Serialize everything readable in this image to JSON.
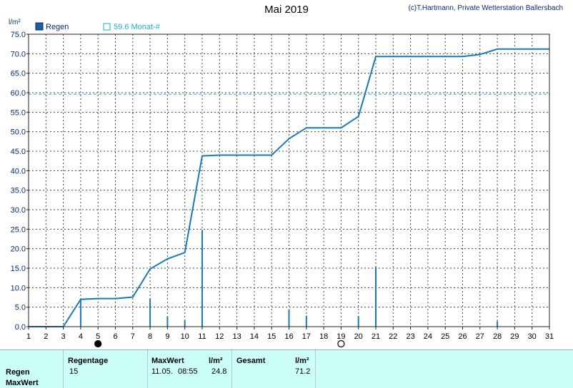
{
  "chart_data": {
    "type": "bar",
    "title": "Mai 2019",
    "credit": "(c)T.Hartmann, Private Wetterstation Ballersbach",
    "ylabel": "l/m²",
    "xlim": [
      1,
      31
    ],
    "ylim": [
      0,
      75
    ],
    "y_ticks": [
      "0.0",
      "5.0",
      "10.0",
      "15.0",
      "20.0",
      "25.0",
      "30.0",
      "35.0",
      "40.0",
      "45.0",
      "50.0",
      "55.0",
      "60.0",
      "65.0",
      "70.0",
      "75.0"
    ],
    "x_ticks": [
      "1",
      "2",
      "3",
      "4",
      "5",
      "6",
      "7",
      "8",
      "9",
      "10",
      "11",
      "12",
      "13",
      "14",
      "15",
      "16",
      "17",
      "18",
      "19",
      "20",
      "21",
      "22",
      "23",
      "24",
      "25",
      "26",
      "27",
      "28",
      "29",
      "30",
      "31"
    ],
    "grid": true,
    "legend": [
      {
        "name": "Regen",
        "symbol": "filled-square",
        "color": "#1a5fa0"
      },
      {
        "name": "59.6 Monat-#",
        "symbol": "open-square",
        "color": "#12b5c8"
      }
    ],
    "reference_line": {
      "y": 59.6,
      "color": "#12b5c8"
    },
    "series": [
      {
        "name": "Regen",
        "kind": "bar",
        "color": "#1a7ab8",
        "points": [
          [
            4,
            7.0
          ],
          [
            8,
            7.2
          ],
          [
            9,
            2.6
          ],
          [
            10,
            1.6
          ],
          [
            11,
            24.8
          ],
          [
            16,
            4.2
          ],
          [
            17,
            2.8
          ],
          [
            20,
            2.7
          ],
          [
            21,
            15.3
          ],
          [
            28,
            1.4
          ]
        ]
      },
      {
        "kind": "line",
        "color": "#1a7ab8",
        "points": [
          [
            1,
            0
          ],
          [
            2,
            0
          ],
          [
            3,
            0
          ],
          [
            4,
            7.0
          ],
          [
            5,
            7.2
          ],
          [
            6,
            7.2
          ],
          [
            7,
            7.6
          ],
          [
            8,
            14.8
          ],
          [
            9,
            17.4
          ],
          [
            10,
            19.0
          ],
          [
            11,
            43.8
          ],
          [
            12,
            44.0
          ],
          [
            13,
            44.0
          ],
          [
            14,
            44.0
          ],
          [
            15,
            44.0
          ],
          [
            16,
            48.2
          ],
          [
            17,
            51.0
          ],
          [
            18,
            51.0
          ],
          [
            19,
            51.0
          ],
          [
            20,
            53.9
          ],
          [
            21,
            69.3
          ],
          [
            22,
            69.3
          ],
          [
            23,
            69.3
          ],
          [
            24,
            69.3
          ],
          [
            25,
            69.3
          ],
          [
            26,
            69.3
          ],
          [
            27,
            69.8
          ],
          [
            28,
            71.2
          ],
          [
            29,
            71.2
          ],
          [
            30,
            71.2
          ],
          [
            31,
            71.2
          ]
        ]
      }
    ],
    "moon_markers": [
      {
        "day": 5,
        "phase": "new-moon"
      },
      {
        "day": 19,
        "phase": "full-moon"
      }
    ],
    "colors": {
      "bars": "#1a7ab8",
      "line": "#1a7ab8",
      "reference": "#12b5c8",
      "panel": "#ccfff8"
    }
  },
  "stats": {
    "col_regentage": "Regentage",
    "col_maxwert": "MaxWert",
    "col_unit1": "l/m²",
    "col_gesamt": "Gesamt",
    "col_unit2": "l/m²",
    "row_regen": "Regen",
    "row_maxwert": "MaxWert",
    "regentage": "15",
    "max_date": "11.05.",
    "max_time": "08:55",
    "max_value": "24.8",
    "gesamt": "71.2"
  }
}
